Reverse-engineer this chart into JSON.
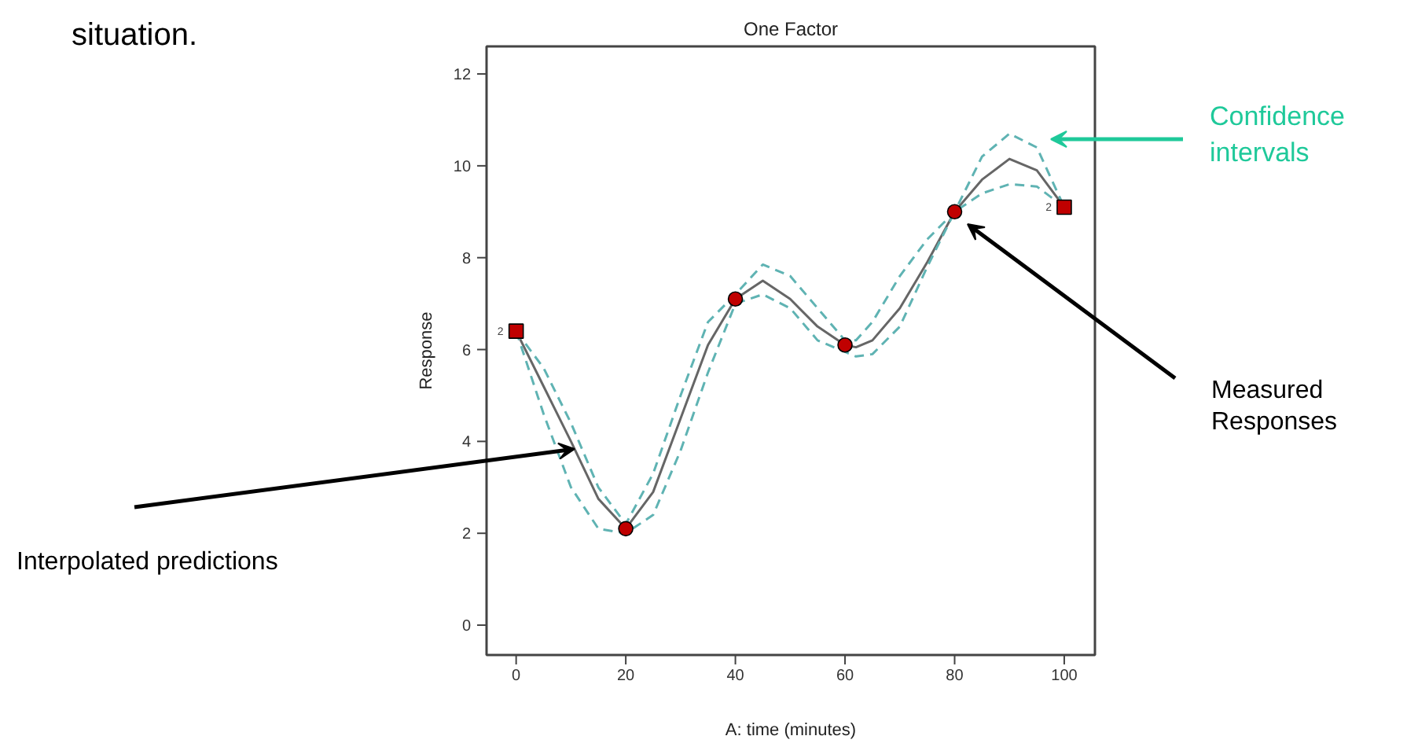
{
  "chart_data": {
    "type": "line",
    "title": "One Factor",
    "xlabel": "A: time (minutes)",
    "ylabel": "Response",
    "xlim": [
      -5.4,
      105.6
    ],
    "ylim": [
      -0.65,
      12.6
    ],
    "xticks": [
      0,
      20,
      40,
      60,
      80,
      100
    ],
    "yticks": [
      0,
      2,
      4,
      6,
      8,
      10,
      12
    ],
    "series": [
      {
        "color": "#666666",
        "line_style": "solid",
        "x": [
          0,
          5,
          10,
          15,
          20,
          25,
          30,
          35,
          40,
          45,
          50,
          55,
          60,
          62,
          65,
          70,
          75,
          80,
          85,
          90,
          95,
          100
        ],
        "values": [
          6.4,
          5.2,
          4.0,
          2.75,
          2.1,
          2.9,
          4.5,
          6.1,
          7.1,
          7.5,
          7.1,
          6.5,
          6.1,
          6.05,
          6.2,
          6.9,
          7.9,
          9.0,
          9.7,
          10.15,
          9.9,
          9.1
        ]
      },
      {
        "color": "#5fb3b3",
        "line_style": "dashed",
        "x": [
          0,
          5,
          10,
          15,
          20,
          25,
          30,
          35,
          40,
          45,
          50,
          55,
          60,
          62,
          65,
          70,
          75,
          80,
          85,
          90,
          95,
          100
        ],
        "values": [
          6.4,
          5.6,
          4.4,
          3.0,
          2.2,
          3.3,
          5.0,
          6.6,
          7.2,
          7.85,
          7.6,
          6.9,
          6.2,
          6.2,
          6.6,
          7.6,
          8.4,
          9.0,
          10.2,
          10.7,
          10.4,
          9.1
        ]
      },
      {
        "color": "#5fb3b3",
        "line_style": "dashed",
        "x": [
          0,
          5,
          10,
          15,
          20,
          25,
          30,
          35,
          40,
          45,
          50,
          55,
          60,
          62,
          65,
          70,
          75,
          80,
          85,
          90,
          95,
          100
        ],
        "values": [
          6.4,
          4.6,
          3.0,
          2.1,
          2.0,
          2.4,
          3.8,
          5.5,
          7.0,
          7.2,
          6.9,
          6.2,
          5.95,
          5.85,
          5.9,
          6.5,
          7.8,
          9.0,
          9.4,
          9.6,
          9.55,
          9.1
        ]
      },
      {
        "type": "scatter",
        "marker": "circle",
        "color": "#c00000",
        "x": [
          20,
          40,
          60,
          80
        ],
        "values": [
          2.1,
          7.1,
          6.1,
          9.0
        ]
      },
      {
        "type": "scatter",
        "marker": "square",
        "color": "#c00000",
        "x": [
          0,
          100
        ],
        "values": [
          6.4,
          9.1
        ]
      }
    ],
    "annotations": [
      "situation.",
      {
        "text": "2",
        "x": 0,
        "y": 6.4
      },
      {
        "text": "2",
        "x": 100,
        "y": 9.1
      },
      "Confidence intervals",
      "Measured Responses",
      "Interpolated predictions"
    ]
  }
}
